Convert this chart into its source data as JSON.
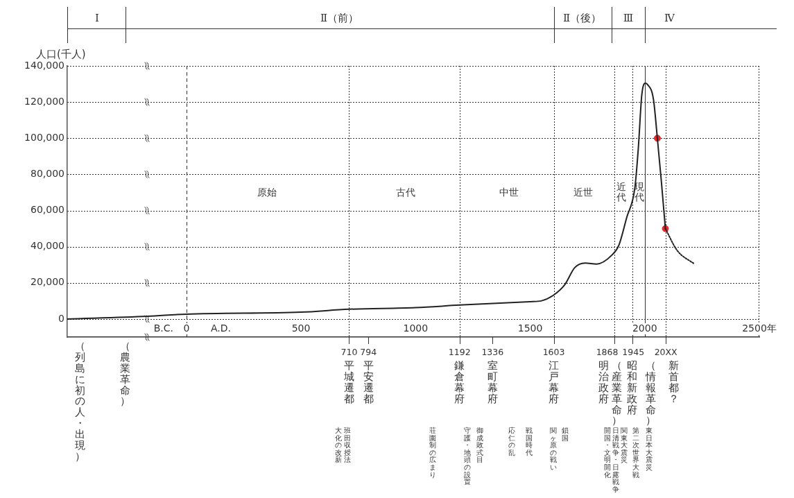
{
  "chart_data": {
    "type": "line",
    "ylabel": "人口(千人)",
    "xlim": [
      -520,
      2500
    ],
    "xticks": [
      {
        "value": -100,
        "label": "B.C."
      },
      0,
      {
        "value": 150,
        "label": "A.D."
      },
      500,
      1000,
      1500,
      2000,
      {
        "value": 2500,
        "label": "2500年"
      }
    ],
    "ylim": [
      -10000,
      140000
    ],
    "yticks": [
      0,
      {
        "value": 20000,
        "label": "20,000"
      },
      {
        "value": 40000,
        "label": "40,000"
      },
      {
        "value": 60000,
        "label": "60,000"
      },
      {
        "value": 80000,
        "label": "80,000"
      },
      {
        "value": 100000,
        "label": "100,000"
      },
      {
        "value": 120000,
        "label": "120,000"
      },
      {
        "value": 140000,
        "label": "140,000"
      }
    ],
    "grid": "y",
    "legend": false,
    "series": [
      {
        "color": "#222222",
        "line_style": "solid",
        "x": [
          -520,
          -170,
          0,
          500,
          710,
          1000,
          1192,
          1500,
          1550,
          1600,
          1650,
          1695,
          1740,
          1790,
          1857,
          1887,
          1921,
          1957,
          1972,
          1987,
          2002,
          2012,
          2038,
          2055,
          2073,
          2090
        ],
        "values": [
          0,
          1500,
          2700,
          3800,
          5400,
          6300,
          7700,
          9600,
          10100,
          13000,
          18800,
          28500,
          31000,
          30400,
          35400,
          40800,
          56000,
          72700,
          94600,
          123800,
          130400,
          129700,
          121500,
          100000,
          75400,
          50000
        ]
      },
      {
        "color": "#222222",
        "line_style": "dotted",
        "x": [
          2090,
          2141,
          2217
        ],
        "values": [
          50000,
          38000,
          30400
        ]
      },
      {
        "type": "scatter",
        "color": "#e8262a",
        "marker": "circle",
        "x": [
          2055,
          2090
        ],
        "values": [
          100000,
          50000
        ]
      }
    ],
    "ref_lines": [
      {
        "axis": "x",
        "value": 0,
        "line_style": "dashed"
      },
      {
        "axis": "x",
        "value": 710,
        "line_style": "dotted"
      },
      {
        "axis": "x",
        "value": 1192,
        "line_style": "dotted"
      },
      {
        "axis": "x",
        "value": 1603,
        "line_style": "dotted"
      },
      {
        "axis": "x",
        "value": 1868,
        "line_style": "dotted"
      },
      {
        "axis": "x",
        "value": 1945,
        "line_style": "dotted"
      },
      {
        "axis": "x",
        "value": 2000,
        "line_style": "solid"
      },
      {
        "axis": "x",
        "value": 2090,
        "line_style": "dotted"
      }
    ],
    "annotations": [
      "Ⅰ",
      "Ⅱ（前）",
      "Ⅱ（後）",
      "Ⅲ",
      "Ⅳ",
      "原始",
      "古代",
      "中世",
      "近世",
      "近代",
      "現代",
      "710",
      "794",
      "1192",
      "1336",
      "1603",
      "1868",
      "1945",
      "20XX",
      "（列島に初の人・出現）",
      "（農業革命）",
      "平城遷都",
      "平安遷都",
      "鎌倉幕府",
      "室町幕府",
      "江戸幕府",
      "明治政府",
      "（産業革命）",
      "昭和新政府",
      "（情報革命）",
      "新首都？",
      "大化の改新",
      "班田収授法",
      "荘園制の広まり",
      "守護・地頭の設置",
      "御成敗式目",
      "応仁の乱",
      "戦国時代",
      "関ヶ原の戦い",
      "鎖国",
      "開国・文明開化",
      "日清戦争・日露戦争",
      "関東大震災",
      "第二次世界大戦",
      "東日本大震災"
    ]
  }
}
